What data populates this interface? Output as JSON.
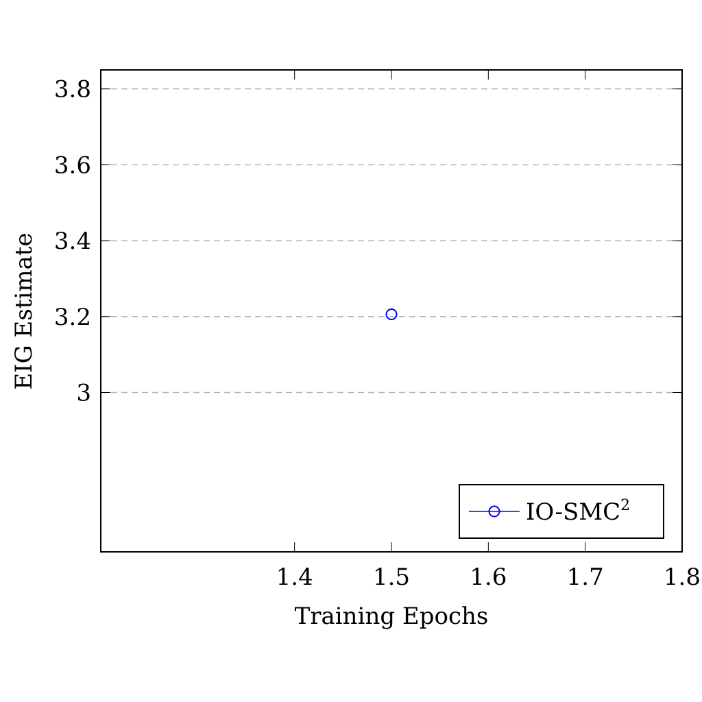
{
  "chart_data": {
    "type": "scatter",
    "xlabel": "Training Epochs",
    "ylabel": "EIG Estimate",
    "xlim": [
      1.2,
      1.8
    ],
    "ylim": [
      2.58,
      3.85
    ],
    "xticks": [
      1.4,
      1.5,
      1.6,
      1.7,
      1.8
    ],
    "xtick_labels": [
      "1.4",
      "1.5",
      "1.6",
      "1.7",
      "1.8"
    ],
    "yticks": [
      3.0,
      3.2,
      3.4,
      3.6,
      3.8
    ],
    "ytick_labels": [
      "3",
      "3.2",
      "3.4",
      "3.6",
      "3.8"
    ],
    "grid": "horizontal-dashed",
    "legend_position": "bottom-right",
    "series": [
      {
        "name": "IO-SMC",
        "name_superscript": "2",
        "color": "#0000ff",
        "marker": "circle-open",
        "x": [
          1.5
        ],
        "y": [
          3.206
        ]
      }
    ]
  }
}
